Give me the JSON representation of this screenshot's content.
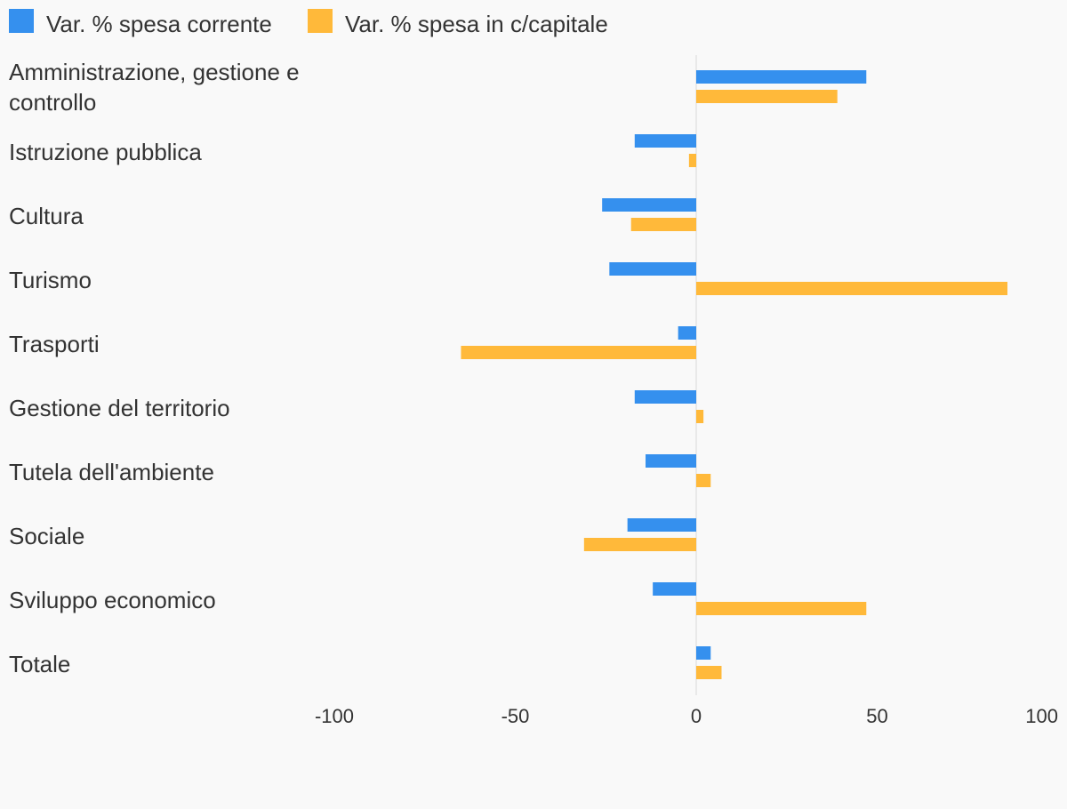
{
  "chart_data": {
    "type": "bar",
    "orientation": "horizontal",
    "title": "",
    "xlabel": "",
    "ylabel": "",
    "categories": [
      "Amministrazione, gestione e controllo",
      "Istruzione pubblica",
      "Cultura",
      "Turismo",
      "Trasporti",
      "Gestione del territorio",
      "Tutela dell'ambiente",
      "Sociale",
      "Sviluppo economico",
      "Totale"
    ],
    "series": [
      {
        "name": "Var. % spesa corrente",
        "color": "#3590ee",
        "values": [
          47,
          -17,
          -26,
          -24,
          -5,
          -17,
          -14,
          -19,
          -12,
          4
        ]
      },
      {
        "name": "Var. % spesa in c/capitale",
        "color": "#ffb93a",
        "values": [
          39,
          -2,
          -18,
          86,
          -65,
          2,
          4,
          -31,
          47,
          7
        ]
      }
    ],
    "xlim": [
      -100,
      100
    ],
    "xticks": [
      "-100",
      "-50",
      "0",
      "50",
      "100"
    ],
    "grid": false,
    "legend_position": "top-left"
  }
}
